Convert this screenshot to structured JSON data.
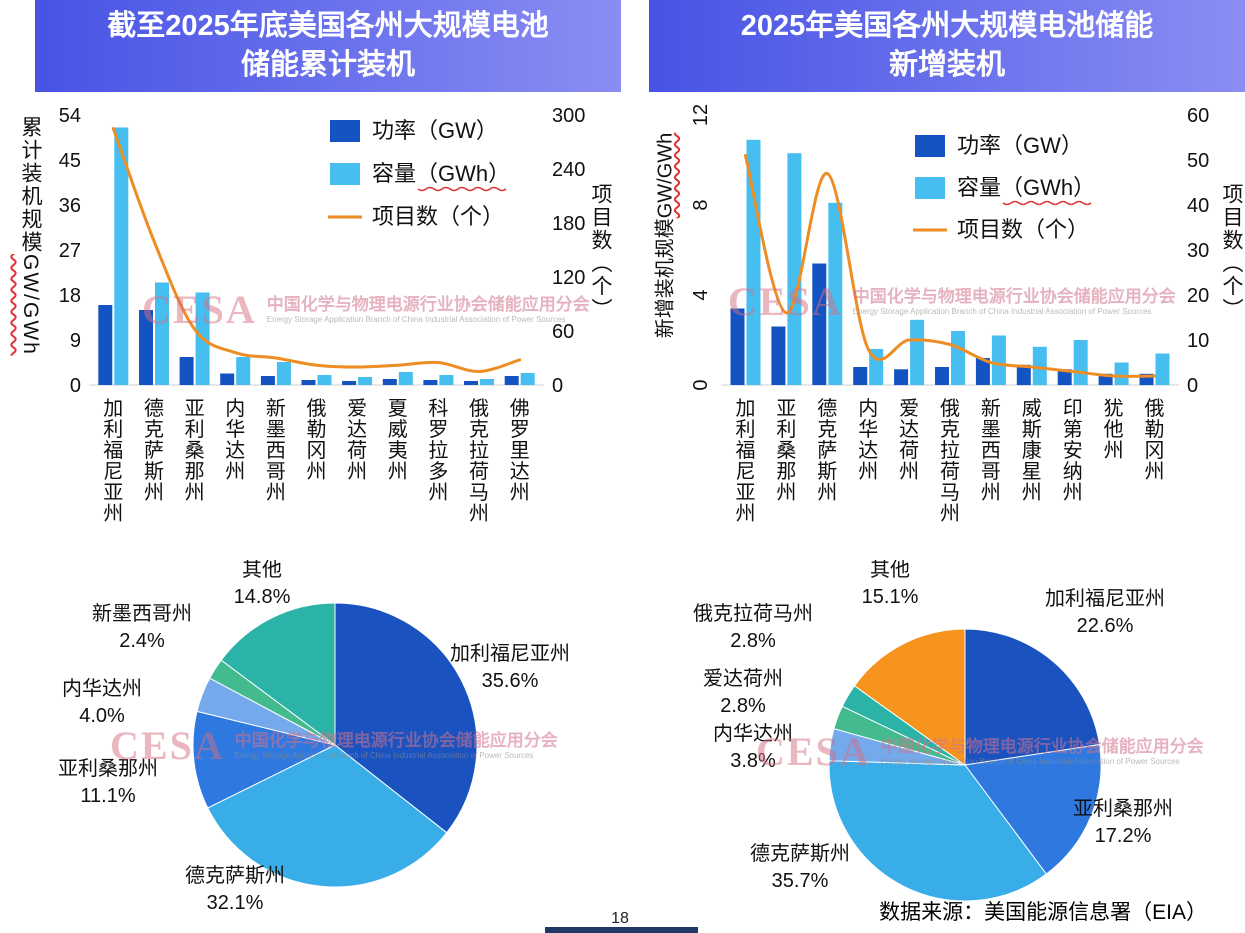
{
  "page": {
    "page_number": "18",
    "source_note": "数据来源：美国能源信息署（EIA）"
  },
  "watermark": {
    "cesa": "CESA",
    "cn": "中国化学与物理电源行业协会储能应用分会",
    "en": "Energy Storage Application Branch of China Industrial Association of Power Sources"
  },
  "chart_data": [
    {
      "id": "cumulative-combo",
      "type": "combo-bar-line",
      "title": "截至2025年底美国各州大规模电池储能累计装机",
      "categories": [
        "加利福尼亚州",
        "德克萨斯州",
        "亚利桑那州",
        "内华达州",
        "新墨西哥州",
        "俄勒冈州",
        "爱达荷州",
        "夏威夷州",
        "科罗拉多州",
        "俄克拉荷马州",
        "佛罗里达州"
      ],
      "series": [
        {
          "name": "功率（GW）",
          "type": "bar",
          "color": "#1353C2",
          "axis": "left",
          "values": [
            16,
            15,
            5.6,
            2.3,
            1.8,
            1.0,
            0.8,
            1.2,
            1.0,
            0.8,
            1.8
          ]
        },
        {
          "name": "容量（GWh）",
          "type": "bar",
          "color": "#46BEF0",
          "axis": "left",
          "values": [
            51.5,
            20.5,
            18.5,
            5.6,
            4.6,
            2.0,
            1.6,
            2.6,
            2.0,
            1.2,
            2.4
          ]
        },
        {
          "name": "项目数（个）",
          "type": "line",
          "color": "#EE8D23",
          "axis": "right",
          "values": [
            285,
            160,
            62,
            36,
            30,
            22,
            20,
            22,
            25,
            15,
            28
          ]
        }
      ],
      "left_axis": {
        "label_cn": "累计装机规模",
        "label_unit": "GW/GWh",
        "min": 0,
        "max": 54,
        "step": 9
      },
      "right_axis": {
        "label": "项目数（个）",
        "min": 0,
        "max": 300,
        "step": 60
      }
    },
    {
      "id": "new-combo",
      "type": "combo-bar-line",
      "title": "2025年美国各州大规模电池储能新增装机",
      "categories": [
        "加利福尼亚州",
        "亚利桑那州",
        "德克萨斯州",
        "内华达州",
        "爱达荷州",
        "俄克拉荷马州",
        "新墨西哥州",
        "威斯康星州",
        "印第安纳州",
        "犹他州",
        "俄勒冈州"
      ],
      "series": [
        {
          "name": "功率（GW）",
          "type": "bar",
          "color": "#1353C2",
          "axis": "left",
          "values": [
            3.4,
            2.6,
            5.4,
            0.8,
            0.7,
            0.8,
            1.2,
            0.9,
            0.7,
            0.5,
            0.5
          ]
        },
        {
          "name": "容量（GWh）",
          "type": "bar",
          "color": "#46BEF0",
          "axis": "left",
          "values": [
            10.9,
            10.3,
            8.1,
            1.6,
            2.9,
            2.4,
            2.2,
            1.7,
            2.0,
            1.0,
            1.4
          ]
        },
        {
          "name": "项目数（个）",
          "type": "line",
          "color": "#EE8D23",
          "axis": "right",
          "values": [
            51,
            16,
            47,
            8,
            10,
            9,
            5,
            4,
            3,
            2,
            2
          ]
        }
      ],
      "left_axis": {
        "label_cn": "新增装机规模",
        "label_unit": "GW/GWh",
        "min": 0,
        "max": 12,
        "step": 4
      },
      "right_axis": {
        "label": "项目数（个）",
        "min": 0,
        "max": 60,
        "step": 10
      }
    },
    {
      "id": "cumulative-pie",
      "type": "pie",
      "slices": [
        {
          "label": "加利福尼亚州",
          "value": 35.6,
          "color": "#1A53C0"
        },
        {
          "label": "德克萨斯州",
          "value": 32.1,
          "color": "#38ADE8"
        },
        {
          "label": "亚利桑那州",
          "value": 11.1,
          "color": "#2E78E0"
        },
        {
          "label": "内华达州",
          "value": 4.0,
          "color": "#74A9EC"
        },
        {
          "label": "新墨西哥州",
          "value": 2.4,
          "color": "#44BB8F"
        },
        {
          "label": "其他",
          "value": 14.8,
          "color": "#2AB3A6"
        }
      ]
    },
    {
      "id": "new-pie",
      "type": "pie",
      "slices": [
        {
          "label": "加利福尼亚州",
          "value": 22.6,
          "color": "#1A53C0"
        },
        {
          "label": "亚利桑那州",
          "value": 17.2,
          "color": "#2E78E0"
        },
        {
          "label": "德克萨斯州",
          "value": 35.7,
          "color": "#38ADE8"
        },
        {
          "label": "内华达州",
          "value": 3.8,
          "color": "#74A9EC"
        },
        {
          "label": "爱达荷州",
          "value": 2.8,
          "color": "#44BB8F"
        },
        {
          "label": "俄克拉荷马州",
          "value": 2.8,
          "color": "#2AB3A6"
        },
        {
          "label": "其他",
          "value": 15.1,
          "color": "#F7941E"
        }
      ]
    }
  ]
}
